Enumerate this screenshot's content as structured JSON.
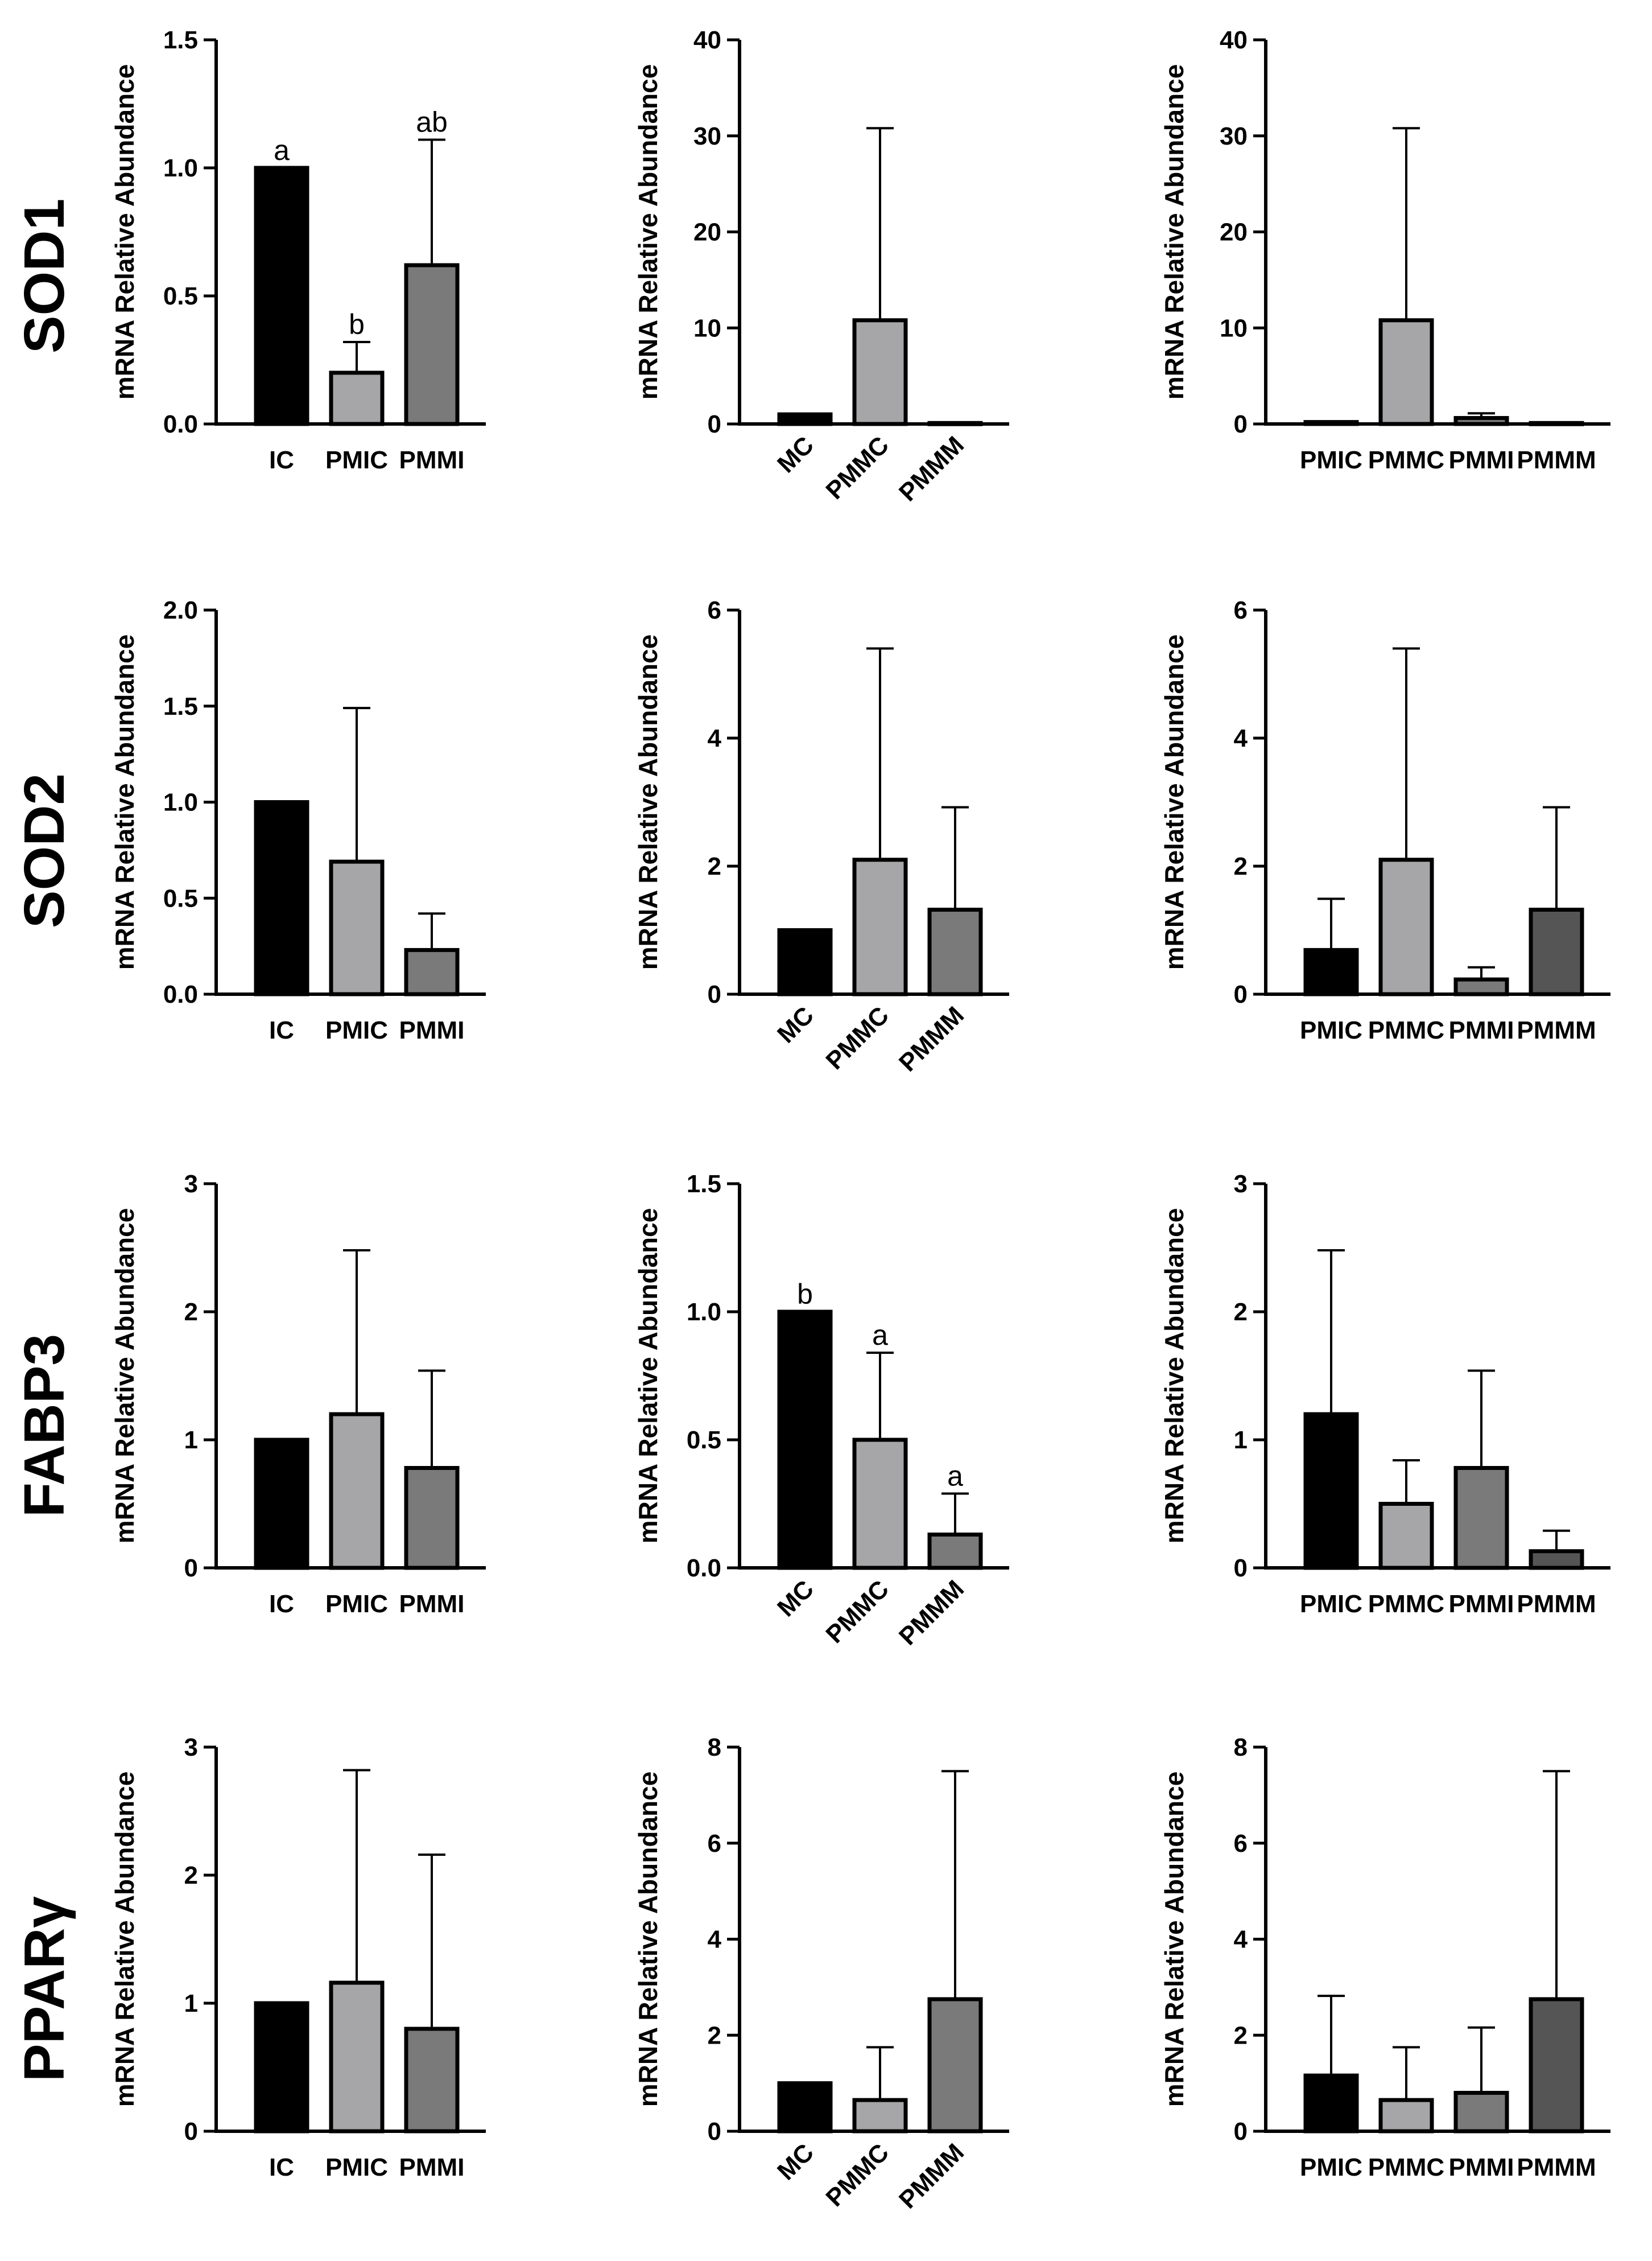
{
  "figure": {
    "ylabel": "mRNA Relative Abundance",
    "row_labels": [
      "SOD1",
      "SOD2",
      "FABP3",
      "PPARγ"
    ]
  },
  "colors": {
    "IC": "#000000",
    "PMIC": "#a6a6a9",
    "PMMI": "#7a7a7a",
    "MC": "#000000",
    "PMMC": "#a6a6a9",
    "PMMM": "#7a7a7a",
    "PMIC_c3": "#000000",
    "PMMC_c3": "#a6a6a9",
    "PMMI_c3": "#7a7a7a",
    "PMMM_c3": "#555555"
  },
  "chart_data": [
    {
      "type": "bar",
      "gene": "SOD1",
      "title": "",
      "xlabel": "",
      "ylabel": "mRNA Relative Abundance",
      "categories": [
        "IC",
        "PMIC",
        "PMMI"
      ],
      "values": [
        1.0,
        0.2,
        0.62
      ],
      "errors": [
        0,
        0.12,
        0.49
      ],
      "annotations": [
        "a",
        "b",
        "ab"
      ],
      "ylim": [
        0,
        1.5
      ],
      "yticks": [
        "0.0",
        "0.5",
        "1.0",
        "1.5"
      ],
      "ytick_values": [
        0,
        0.5,
        1.0,
        1.5
      ],
      "rotate_labels": false,
      "colors": [
        "#000000",
        "#a6a6a9",
        "#7a7a7a"
      ]
    },
    {
      "type": "bar",
      "gene": "SOD1",
      "title": "",
      "xlabel": "",
      "ylabel": "mRNA Relative Abundance",
      "categories": [
        "MC",
        "PMMC",
        "PMMM"
      ],
      "values": [
        1.0,
        10.8,
        0.1
      ],
      "errors": [
        0,
        20.0,
        0
      ],
      "annotations": [
        "",
        "",
        ""
      ],
      "ylim": [
        0,
        40
      ],
      "yticks": [
        "0",
        "10",
        "20",
        "30",
        "40"
      ],
      "ytick_values": [
        0,
        10,
        20,
        30,
        40
      ],
      "rotate_labels": true,
      "colors": [
        "#000000",
        "#a6a6a9",
        "#7a7a7a"
      ]
    },
    {
      "type": "bar",
      "gene": "SOD1",
      "title": "",
      "xlabel": "",
      "ylabel": "mRNA Relative Abundance",
      "categories": [
        "PMIC",
        "PMMC",
        "PMMI",
        "PMMM"
      ],
      "values": [
        0.2,
        10.8,
        0.62,
        0.1
      ],
      "errors": [
        0,
        20.0,
        0.49,
        0
      ],
      "annotations": [
        "",
        "",
        "",
        ""
      ],
      "ylim": [
        0,
        40
      ],
      "yticks": [
        "0",
        "10",
        "20",
        "30",
        "40"
      ],
      "ytick_values": [
        0,
        10,
        20,
        30,
        40
      ],
      "rotate_labels": false,
      "colors": [
        "#000000",
        "#a6a6a9",
        "#7a7a7a",
        "#555555"
      ]
    },
    {
      "type": "bar",
      "gene": "SOD2",
      "title": "",
      "xlabel": "",
      "ylabel": "mRNA Relative Abundance",
      "categories": [
        "IC",
        "PMIC",
        "PMMI"
      ],
      "values": [
        1.0,
        0.69,
        0.23
      ],
      "errors": [
        0,
        0.8,
        0.19
      ],
      "annotations": [
        "",
        "",
        ""
      ],
      "ylim": [
        0,
        2.0
      ],
      "yticks": [
        "0.0",
        "0.5",
        "1.0",
        "1.5",
        "2.0"
      ],
      "ytick_values": [
        0,
        0.5,
        1.0,
        1.5,
        2.0
      ],
      "rotate_labels": false,
      "colors": [
        "#000000",
        "#a6a6a9",
        "#7a7a7a"
      ]
    },
    {
      "type": "bar",
      "gene": "SOD2",
      "title": "",
      "xlabel": "",
      "ylabel": "mRNA Relative Abundance",
      "categories": [
        "MC",
        "PMMC",
        "PMMM"
      ],
      "values": [
        1.0,
        2.1,
        1.32
      ],
      "errors": [
        0,
        3.3,
        1.6
      ],
      "annotations": [
        "",
        "",
        ""
      ],
      "ylim": [
        0,
        6
      ],
      "yticks": [
        "0",
        "2",
        "4",
        "6"
      ],
      "ytick_values": [
        0,
        2,
        4,
        6
      ],
      "rotate_labels": true,
      "colors": [
        "#000000",
        "#a6a6a9",
        "#7a7a7a"
      ]
    },
    {
      "type": "bar",
      "gene": "SOD2",
      "title": "",
      "xlabel": "",
      "ylabel": "mRNA Relative Abundance",
      "categories": [
        "PMIC",
        "PMMC",
        "PMMI",
        "PMMM"
      ],
      "values": [
        0.69,
        2.1,
        0.23,
        1.32
      ],
      "errors": [
        0.8,
        3.3,
        0.19,
        1.6
      ],
      "annotations": [
        "",
        "",
        "",
        ""
      ],
      "ylim": [
        0,
        6
      ],
      "yticks": [
        "0",
        "2",
        "4",
        "6"
      ],
      "ytick_values": [
        0,
        2,
        4,
        6
      ],
      "rotate_labels": false,
      "colors": [
        "#000000",
        "#a6a6a9",
        "#7a7a7a",
        "#555555"
      ]
    },
    {
      "type": "bar",
      "gene": "FABP3",
      "title": "",
      "xlabel": "",
      "ylabel": "mRNA Relative Abundance",
      "categories": [
        "IC",
        "PMIC",
        "PMMI"
      ],
      "values": [
        1.0,
        1.2,
        0.78
      ],
      "errors": [
        0,
        1.28,
        0.76
      ],
      "annotations": [
        "",
        "",
        ""
      ],
      "ylim": [
        0,
        3
      ],
      "yticks": [
        "0",
        "1",
        "2",
        "3"
      ],
      "ytick_values": [
        0,
        1,
        2,
        3
      ],
      "rotate_labels": false,
      "colors": [
        "#000000",
        "#a6a6a9",
        "#7a7a7a"
      ]
    },
    {
      "type": "bar",
      "gene": "FABP3",
      "title": "",
      "xlabel": "",
      "ylabel": "mRNA Relative Abundance",
      "categories": [
        "MC",
        "PMMC",
        "PMMM"
      ],
      "values": [
        1.0,
        0.5,
        0.13
      ],
      "errors": [
        0,
        0.34,
        0.16
      ],
      "annotations": [
        "b",
        "a",
        "a"
      ],
      "ylim": [
        0,
        1.5
      ],
      "yticks": [
        "0.0",
        "0.5",
        "1.0",
        "1.5"
      ],
      "ytick_values": [
        0,
        0.5,
        1.0,
        1.5
      ],
      "rotate_labels": true,
      "colors": [
        "#000000",
        "#a6a6a9",
        "#7a7a7a"
      ]
    },
    {
      "type": "bar",
      "gene": "FABP3",
      "title": "",
      "xlabel": "",
      "ylabel": "mRNA Relative Abundance",
      "categories": [
        "PMIC",
        "PMMC",
        "PMMI",
        "PMMM"
      ],
      "values": [
        1.2,
        0.5,
        0.78,
        0.13
      ],
      "errors": [
        1.28,
        0.34,
        0.76,
        0.16
      ],
      "annotations": [
        "",
        "",
        "",
        ""
      ],
      "ylim": [
        0,
        3
      ],
      "yticks": [
        "0",
        "1",
        "2",
        "3"
      ],
      "ytick_values": [
        0,
        1,
        2,
        3
      ],
      "rotate_labels": false,
      "colors": [
        "#000000",
        "#a6a6a9",
        "#7a7a7a",
        "#555555"
      ]
    },
    {
      "type": "bar",
      "gene": "PPARγ",
      "title": "",
      "xlabel": "",
      "ylabel": "mRNA Relative Abundance",
      "categories": [
        "IC",
        "PMIC",
        "PMMI"
      ],
      "values": [
        1.0,
        1.16,
        0.8
      ],
      "errors": [
        0,
        1.66,
        1.36
      ],
      "annotations": [
        "",
        "",
        ""
      ],
      "ylim": [
        0,
        3
      ],
      "yticks": [
        "0",
        "1",
        "2",
        "3"
      ],
      "ytick_values": [
        0,
        1,
        2,
        3
      ],
      "rotate_labels": false,
      "colors": [
        "#000000",
        "#a6a6a9",
        "#7a7a7a"
      ]
    },
    {
      "type": "bar",
      "gene": "PPARγ",
      "title": "",
      "xlabel": "",
      "ylabel": "mRNA Relative Abundance",
      "categories": [
        "MC",
        "PMMC",
        "PMMM"
      ],
      "values": [
        1.0,
        0.65,
        2.75
      ],
      "errors": [
        0,
        1.1,
        4.75
      ],
      "annotations": [
        "",
        "",
        ""
      ],
      "ylim": [
        0,
        8
      ],
      "yticks": [
        "0",
        "2",
        "4",
        "6",
        "8"
      ],
      "ytick_values": [
        0,
        2,
        4,
        6,
        8
      ],
      "rotate_labels": true,
      "colors": [
        "#000000",
        "#a6a6a9",
        "#7a7a7a"
      ]
    },
    {
      "type": "bar",
      "gene": "PPARγ",
      "title": "",
      "xlabel": "",
      "ylabel": "mRNA Relative Abundance",
      "categories": [
        "PMIC",
        "PMMC",
        "PMMI",
        "PMMM"
      ],
      "values": [
        1.16,
        0.65,
        0.8,
        2.75
      ],
      "errors": [
        1.66,
        1.1,
        1.36,
        4.75
      ],
      "annotations": [
        "",
        "",
        "",
        ""
      ],
      "ylim": [
        0,
        8
      ],
      "yticks": [
        "0",
        "2",
        "4",
        "6",
        "8"
      ],
      "ytick_values": [
        0,
        2,
        4,
        6,
        8
      ],
      "rotate_labels": false,
      "colors": [
        "#000000",
        "#a6a6a9",
        "#7a7a7a",
        "#555555"
      ]
    }
  ]
}
